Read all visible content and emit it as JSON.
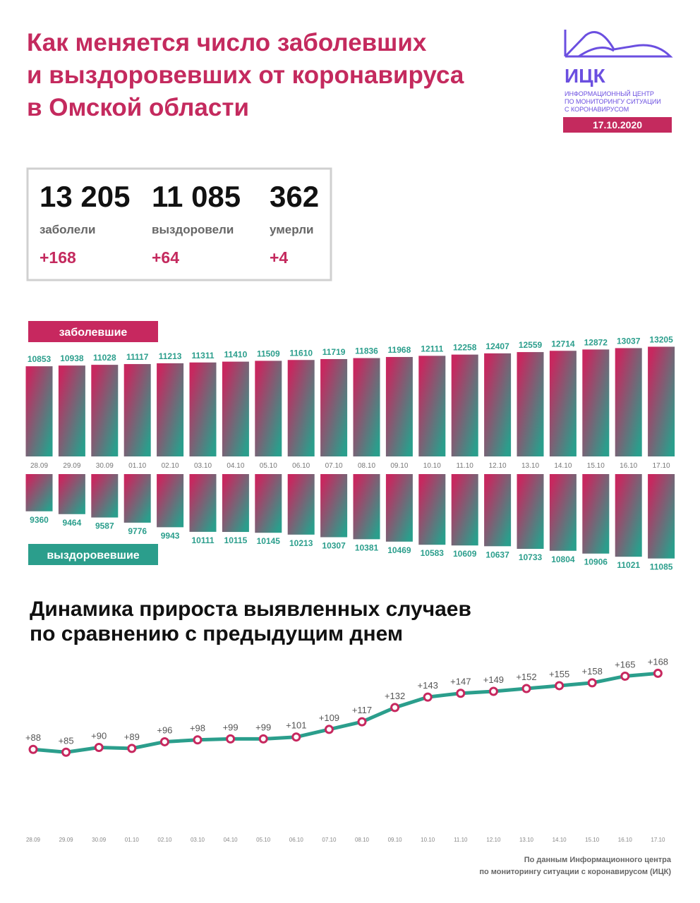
{
  "header": {
    "title_lines": [
      "Как меняется число заболевших",
      "и выздоровевших от коронавируса",
      "в Омской области"
    ]
  },
  "logo": {
    "abbr": "ИЦК",
    "lines": [
      "ИНФОРМАЦИОННЫЙ ЦЕНТР",
      "ПО МОНИТОРИНГУ СИТУАЦИИ",
      "С КОРОНАВИРУСОМ"
    ],
    "date": "17.10.2020"
  },
  "summary": [
    {
      "total": "13 205",
      "label": "заболели",
      "delta": "+168"
    },
    {
      "total": "11 085",
      "label": "выздоровели",
      "delta": "+64"
    },
    {
      "total": "362",
      "label": "умерли",
      "delta": "+4"
    }
  ],
  "chart_data": [
    {
      "type": "bar",
      "categories": [
        "28.09",
        "29.09",
        "30.09",
        "01.10",
        "02.10",
        "03.10",
        "04.10",
        "05.10",
        "06.10",
        "07.10",
        "08.10",
        "09.10",
        "10.10",
        "11.10",
        "12.10",
        "13.10",
        "14.10",
        "15.10",
        "16.10",
        "17.10"
      ],
      "ylim": [
        0,
        13500
      ],
      "y2lim": [
        8000,
        11300
      ],
      "series": [
        {
          "name": "заболевшие",
          "color": "#c7285f",
          "values": [
            10853,
            10938,
            11028,
            11117,
            11213,
            11311,
            11410,
            11509,
            11610,
            11719,
            11836,
            11968,
            12111,
            12258,
            12407,
            12559,
            12714,
            12872,
            13037,
            13205
          ]
        },
        {
          "name": "выздоровевшие",
          "color": "#2b9e8c",
          "axis": "y2",
          "values": [
            9360,
            9464,
            9587,
            9776,
            9943,
            10111,
            10115,
            10145,
            10213,
            10307,
            10381,
            10469,
            10583,
            10609,
            10637,
            10733,
            10804,
            10906,
            11021,
            11085
          ]
        }
      ]
    },
    {
      "type": "line",
      "title_lines": [
        "Динамика прироста выявленных случаев",
        "по сравнению с предыдущим днем"
      ],
      "categories": [
        "28.09",
        "29.09",
        "30.09",
        "01.10",
        "02.10",
        "03.10",
        "04.10",
        "05.10",
        "06.10",
        "07.10",
        "08.10",
        "09.10",
        "10.10",
        "11.10",
        "12.10",
        "13.10",
        "14.10",
        "15.10",
        "16.10",
        "17.10"
      ],
      "ylim": [
        80,
        175
      ],
      "color": "#2b9e8c",
      "marker_color": "#c7285f",
      "values": [
        88,
        85,
        90,
        89,
        96,
        98,
        99,
        99,
        101,
        109,
        117,
        132,
        143,
        147,
        149,
        152,
        155,
        158,
        165,
        168
      ],
      "value_labels": [
        "+88",
        "+85",
        "+90",
        "+89",
        "+96",
        "+98",
        "+99",
        "+99",
        "+101",
        "+109",
        "+117",
        "+132",
        "+143",
        "+147",
        "+149",
        "+152",
        "+155",
        "+158",
        "+165",
        "+168"
      ]
    }
  ],
  "footer": [
    "По данным Информационного центра",
    "по мониторингу ситуации с коронавирусом (ИЦК)"
  ]
}
